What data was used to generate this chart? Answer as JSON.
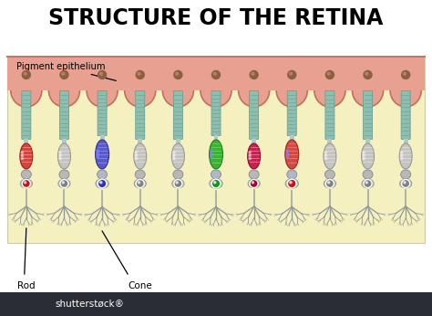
{
  "title": "STRUCTURE OF THE RETINA",
  "title_fontsize": 17,
  "title_weight": "bold",
  "bg_color": "#ffffff",
  "diagram_bg": "#f5f0c0",
  "epithelium_color": "#e8a090",
  "epithelium_top_color": "#d4907a",
  "label_pigment": "Pigment epithelium",
  "label_rod": "Rod",
  "label_cone": "Cone",
  "shutterstock_bar": "#2a2d35",
  "outer_seg_color": "#8cbfb0",
  "outer_seg_stripe": "#6a9e90",
  "inner_seg_color": "#c8d8d0",
  "stem_color": "#b8c8c0",
  "brown_dot": "#8b6040",
  "axon_color": "#b0b8b0",
  "dendrite_color": "#909898",
  "cells": [
    {
      "type": "rod",
      "body_color": "#cc3333",
      "body_edge": "#991111",
      "nuc_color": "#cc1111",
      "label_rod": true
    },
    {
      "type": "rod",
      "body_color": "#c0c0c0",
      "body_edge": "#909090",
      "nuc_color": "#808080",
      "label_rod": false
    },
    {
      "type": "cone",
      "body_color": "#4444cc",
      "body_edge": "#222288",
      "nuc_color": "#3333bb",
      "label_cone": true
    },
    {
      "type": "rod",
      "body_color": "#c0c0c0",
      "body_edge": "#909090",
      "nuc_color": "#808080",
      "label_rod": false
    },
    {
      "type": "rod",
      "body_color": "#c0c0c0",
      "body_edge": "#909090",
      "nuc_color": "#808080",
      "label_rod": false
    },
    {
      "type": "cone",
      "body_color": "#22aa22",
      "body_edge": "#117711",
      "nuc_color": "#119911",
      "label_cone": false
    },
    {
      "type": "rod",
      "body_color": "#bb1144",
      "body_edge": "#880033",
      "nuc_color": "#aa0033",
      "label_rod": false
    },
    {
      "type": "cone",
      "body_color": "#cc3333",
      "body_edge": "#991111",
      "nuc_color": "#cc1111",
      "label_cone": false
    },
    {
      "type": "rod",
      "body_color": "#c0c0c0",
      "body_edge": "#909090",
      "nuc_color": "#808080",
      "label_rod": false
    },
    {
      "type": "rod",
      "body_color": "#c0c0c0",
      "body_edge": "#909090",
      "nuc_color": "#808080",
      "label_rod": false
    },
    {
      "type": "rod",
      "body_color": "#c0c0c0",
      "body_edge": "#909090",
      "nuc_color": "#808080",
      "label_rod": false
    }
  ]
}
